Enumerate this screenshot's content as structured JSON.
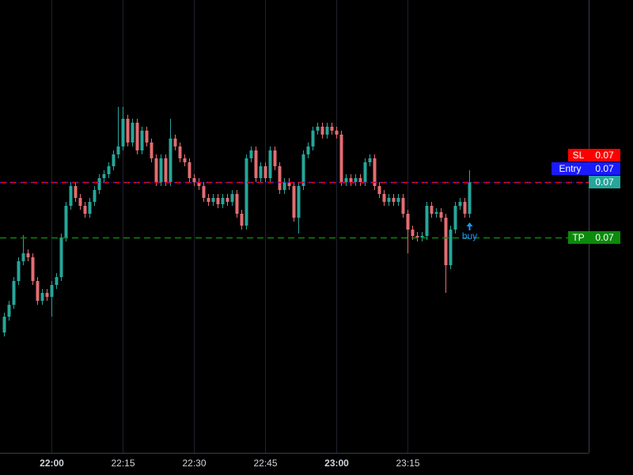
{
  "chart_data": {
    "type": "candlestick",
    "categories": [
      null,
      null,
      null,
      null,
      null,
      null,
      null,
      null,
      null,
      null,
      "22:00",
      null,
      null,
      null,
      null,
      null,
      null,
      null,
      null,
      null,
      null,
      null,
      null,
      null,
      null,
      "22:15",
      null,
      null,
      null,
      null,
      null,
      null,
      null,
      null,
      null,
      null,
      null,
      null,
      null,
      null,
      "22:30",
      null,
      null,
      null,
      null,
      null,
      null,
      null,
      null,
      null,
      null,
      null,
      null,
      null,
      null,
      "22:45",
      null,
      null,
      null,
      null,
      null,
      null,
      null,
      null,
      null,
      null,
      null,
      null,
      null,
      null,
      "23:00",
      null,
      null,
      null,
      null,
      null,
      null,
      null,
      null,
      null,
      null,
      null,
      null,
      null,
      null,
      "23:15",
      null,
      null,
      null,
      null,
      null,
      null,
      null,
      null,
      null,
      null,
      null,
      null,
      null
    ],
    "open": [
      0.0681,
      0.0683,
      0.06845,
      0.06875,
      0.069,
      0.0691,
      0.06905,
      0.06875,
      0.0685,
      0.0686,
      0.06855,
      0.0687,
      0.0688,
      0.0693,
      0.0697,
      0.06995,
      0.0698,
      0.0697,
      0.0696,
      0.06975,
      0.0699,
      0.07005,
      0.0701,
      0.0702,
      0.07035,
      0.07045,
      0.0708,
      0.0705,
      0.07075,
      0.0704,
      0.07065,
      0.0705,
      0.0703,
      0.07,
      0.0703,
      0.07,
      0.07055,
      0.07045,
      0.0703,
      0.07025,
      0.07005,
      0.07,
      0.06995,
      0.0698,
      0.06975,
      0.0698,
      0.06972,
      0.0698,
      0.06975,
      0.06985,
      0.0696,
      0.06945,
      0.0703,
      0.0704,
      0.07005,
      0.0702,
      0.07005,
      0.0704,
      0.0702,
      0.0699,
      0.07,
      0.06995,
      0.06955,
      0.06995,
      0.07035,
      0.07045,
      0.07065,
      0.0707,
      0.0706,
      0.0707,
      0.07065,
      0.0706,
      0.07,
      0.07005,
      0.07,
      0.07005,
      0.07,
      0.07025,
      0.0703,
      0.06995,
      0.06985,
      0.06975,
      0.0698,
      0.06975,
      0.0698,
      0.0696,
      0.0694,
      0.06932,
      0.0693,
      0.06932,
      0.0697,
      0.0696,
      0.06962,
      0.06955,
      0.06895,
      0.0694,
      0.0697,
      0.06975,
      0.0696
    ],
    "high": [
      0.06835,
      0.0685,
      0.0688,
      0.06905,
      0.06933,
      0.06915,
      0.0691,
      0.0688,
      0.06865,
      0.06865,
      0.06875,
      0.06885,
      0.06935,
      0.06975,
      0.07,
      0.07,
      0.06985,
      0.06975,
      0.0698,
      0.06995,
      0.0701,
      0.07015,
      0.07025,
      0.0704,
      0.07095,
      0.07095,
      0.07085,
      0.0708,
      0.0708,
      0.0707,
      0.0707,
      0.07055,
      0.07035,
      0.07035,
      0.07035,
      0.0708,
      0.0706,
      0.0705,
      0.07035,
      0.0703,
      0.0701,
      0.07005,
      0.07,
      0.06985,
      0.06985,
      0.06985,
      0.06985,
      0.06985,
      0.0699,
      0.0699,
      0.06965,
      0.07035,
      0.07045,
      0.07045,
      0.07025,
      0.07025,
      0.07045,
      0.07045,
      0.07025,
      0.07005,
      0.07005,
      0.07,
      0.07,
      0.0704,
      0.0705,
      0.0707,
      0.07075,
      0.07075,
      0.07075,
      0.07075,
      0.0707,
      0.07065,
      0.0701,
      0.0701,
      0.0701,
      0.0701,
      0.0703,
      0.07035,
      0.07035,
      0.07,
      0.0699,
      0.06985,
      0.06985,
      0.06985,
      0.06985,
      0.06965,
      0.06945,
      0.06937,
      0.06937,
      0.06975,
      0.06975,
      0.06967,
      0.06967,
      0.0696,
      0.06945,
      0.06975,
      0.0698,
      0.0698,
      0.07015
    ],
    "low": [
      0.06805,
      0.06825,
      0.0684,
      0.0687,
      0.06895,
      0.069,
      0.0687,
      0.06845,
      0.06845,
      0.0685,
      0.0683,
      0.06865,
      0.06875,
      0.06925,
      0.06965,
      0.06975,
      0.06965,
      0.06955,
      0.06955,
      0.0697,
      0.06985,
      0.07,
      0.07005,
      0.07015,
      0.0703,
      0.0704,
      0.07045,
      0.07045,
      0.07035,
      0.07035,
      0.07045,
      0.07025,
      0.06995,
      0.06995,
      0.06995,
      0.06995,
      0.0704,
      0.07025,
      0.0702,
      0.07,
      0.06995,
      0.0699,
      0.06975,
      0.0697,
      0.0697,
      0.06967,
      0.06967,
      0.0697,
      0.0697,
      0.06955,
      0.0694,
      0.0694,
      0.07025,
      0.07,
      0.07,
      0.07,
      0.07,
      0.07015,
      0.06985,
      0.06985,
      0.0699,
      0.0695,
      0.06935,
      0.0699,
      0.0703,
      0.0704,
      0.0706,
      0.07055,
      0.07055,
      0.0706,
      0.07055,
      0.06995,
      0.06995,
      0.06995,
      0.06995,
      0.06995,
      0.06995,
      0.0702,
      0.0699,
      0.0698,
      0.0697,
      0.0697,
      0.0697,
      0.0697,
      0.06955,
      0.0691,
      0.06927,
      0.06925,
      0.06925,
      0.06927,
      0.06955,
      0.06955,
      0.0695,
      0.0686,
      0.0689,
      0.06935,
      0.06965,
      0.06955,
      0.06955
    ],
    "close": [
      0.0683,
      0.06845,
      0.06875,
      0.069,
      0.0691,
      0.06905,
      0.06875,
      0.0685,
      0.0686,
      0.06855,
      0.0687,
      0.0688,
      0.0693,
      0.0697,
      0.06995,
      0.0698,
      0.0697,
      0.0696,
      0.06975,
      0.0699,
      0.07005,
      0.0701,
      0.0702,
      0.07035,
      0.07045,
      0.0708,
      0.0705,
      0.07075,
      0.0704,
      0.07065,
      0.0705,
      0.0703,
      0.07,
      0.0703,
      0.07,
      0.07055,
      0.07045,
      0.0703,
      0.07025,
      0.07005,
      0.07,
      0.06995,
      0.0698,
      0.06975,
      0.0698,
      0.06972,
      0.0698,
      0.06975,
      0.06985,
      0.0696,
      0.06945,
      0.0703,
      0.0704,
      0.07005,
      0.0702,
      0.07005,
      0.0704,
      0.0702,
      0.0699,
      0.07,
      0.06995,
      0.06955,
      0.06995,
      0.07035,
      0.07045,
      0.07065,
      0.0707,
      0.0706,
      0.0707,
      0.07065,
      0.0706,
      0.07,
      0.07005,
      0.07,
      0.07005,
      0.07,
      0.07025,
      0.0703,
      0.06995,
      0.06985,
      0.06975,
      0.0698,
      0.06975,
      0.0698,
      0.0696,
      0.0694,
      0.06932,
      0.0693,
      0.06932,
      0.0697,
      0.0696,
      0.06962,
      0.06955,
      0.06895,
      0.0694,
      0.0697,
      0.06975,
      0.0696,
      0.07
    ],
    "up_color": "#26a69a",
    "down_color": "#e26d72",
    "ylim": [
      0.06658,
      0.0723
    ],
    "grid": true,
    "levels": [
      {
        "name": "SL",
        "value": 0.07,
        "color": "#ff0000",
        "style": "dashed"
      },
      {
        "name": "Entry",
        "value": 0.07,
        "color": "#1a1aff",
        "style": "dotted"
      },
      {
        "name": "TP",
        "value": 0.0693,
        "value_label": "0.07",
        "color": "#0b8a0b",
        "style": "dashed"
      }
    ],
    "last_price_color": "#26a69a",
    "annotations": [
      {
        "text": "buy",
        "index": 98,
        "color": "#2196f3"
      }
    ]
  }
}
